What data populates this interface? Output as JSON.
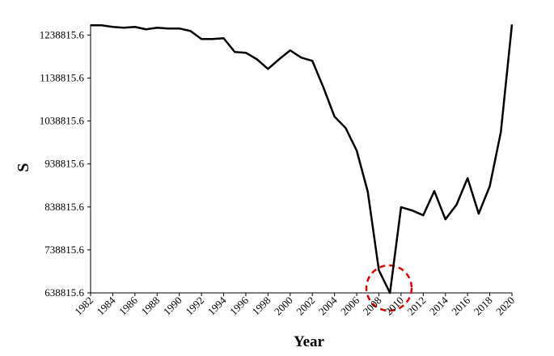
{
  "chart_data": {
    "type": "line",
    "x_label": "Year",
    "y_label": "S",
    "x": [
      1982,
      1983,
      1984,
      1985,
      1986,
      1987,
      1988,
      1989,
      1990,
      1991,
      1992,
      1993,
      1994,
      1995,
      1996,
      1997,
      1998,
      1999,
      2000,
      2001,
      2002,
      2003,
      2004,
      2005,
      2006,
      2007,
      2008,
      2009,
      2010,
      2011,
      2012,
      2013,
      2014,
      2015,
      2016,
      2017,
      2018,
      2019,
      2020
    ],
    "series": [
      {
        "name": "S",
        "color": "#000000",
        "values": [
          1261400,
          1261400,
          1257700,
          1255800,
          1257700,
          1252000,
          1255800,
          1254000,
          1254000,
          1248300,
          1229500,
          1229500,
          1231300,
          1199400,
          1197500,
          1182400,
          1159900,
          1182400,
          1203100,
          1186200,
          1178700,
          1116600,
          1048900,
          1022500,
          969900,
          873900,
          691500,
          638800,
          838200,
          830700,
          819400,
          875800,
          810000,
          843800,
          905900,
          823200,
          887100,
          1013100,
          1263300
        ]
      }
    ],
    "xlim": [
      1982,
      2020
    ],
    "xticks": [
      1982,
      1984,
      1986,
      1988,
      1990,
      1992,
      1994,
      1996,
      1998,
      2000,
      2002,
      2004,
      2006,
      2008,
      2010,
      2012,
      2014,
      2016,
      2018,
      2020
    ],
    "ylim": [
      638815.6,
      1263815.6
    ],
    "yticks": [
      638815.6,
      738815.6,
      838815.6,
      938815.6,
      1038815.6,
      1138815.6,
      1238815.6
    ],
    "grid": false
  }
}
